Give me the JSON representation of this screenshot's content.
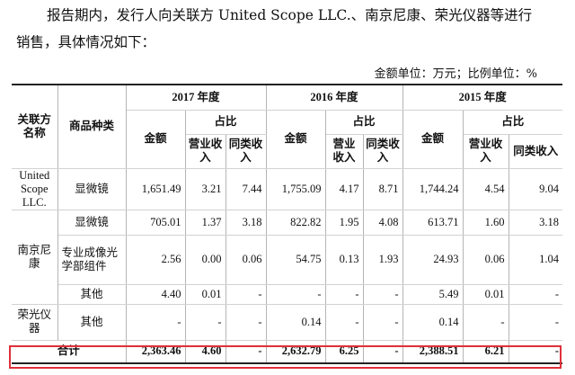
{
  "intro": {
    "line1": "报告期内，发行人向关联方 United Scope LLC.、南京尼康、荣光仪器等进行",
    "line2": "销售，具体情况如下："
  },
  "unit_note": "金额单位：万元；比例单位：%",
  "headers": {
    "party": "关联方名称",
    "product": "商品种类",
    "amount": "金额",
    "share": "占比",
    "revenue": "营业收入",
    "same_type": "同类收入",
    "years": [
      "2017 年度",
      "2016 年度",
      "2015 年度"
    ]
  },
  "rows": [
    {
      "party": "United Scope LLC.",
      "product": "显微镜",
      "cells": [
        "1,651.49",
        "3.21",
        "7.44",
        "1,755.09",
        "4.17",
        "8.71",
        "1,744.24",
        "4.54",
        "9.04"
      ]
    },
    {
      "party": "南京尼康",
      "product": "显微镜",
      "cells": [
        "705.01",
        "1.37",
        "3.18",
        "822.82",
        "1.95",
        "4.08",
        "613.71",
        "1.60",
        "3.18"
      ]
    },
    {
      "party": "",
      "product": "专业成像光学部组件",
      "cells": [
        "2.56",
        "0.00",
        "0.06",
        "54.75",
        "0.13",
        "1.93",
        "24.93",
        "0.06",
        "1.04"
      ]
    },
    {
      "party": "",
      "product": "其他",
      "cells": [
        "4.40",
        "0.01",
        "-",
        "-",
        "-",
        "-",
        "5.49",
        "0.01",
        "-"
      ]
    },
    {
      "party": "荣光仪器",
      "product": "其他",
      "cells": [
        "-",
        "-",
        "-",
        "0.14",
        "-",
        "-",
        "0.14",
        "-",
        "-"
      ]
    }
  ],
  "total": {
    "label": "合计",
    "cells": [
      "2,363.46",
      "4.60",
      "-",
      "2,632.79",
      "6.25",
      "-",
      "2,388.51",
      "6.21",
      "-"
    ]
  }
}
